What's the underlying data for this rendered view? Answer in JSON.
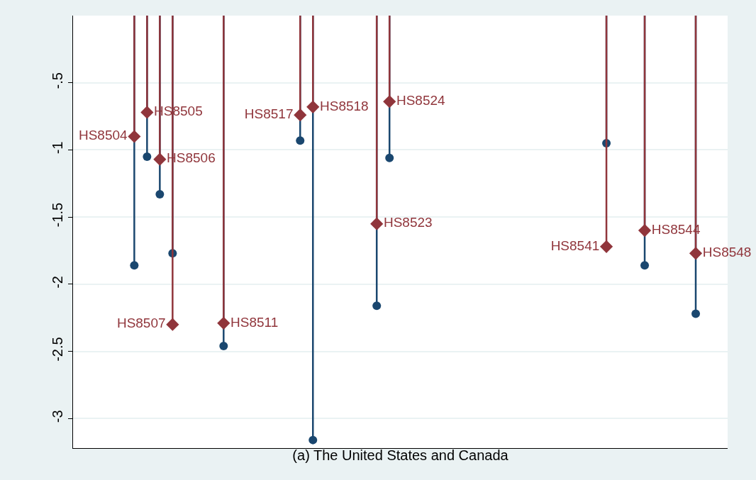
{
  "chart_data": {
    "type": "lollipop",
    "xlabel": "(a) The United States and Canada",
    "categories": [
      null,
      null,
      null,
      null,
      null,
      null,
      null,
      null,
      null,
      null,
      null,
      null,
      null,
      null,
      null,
      null,
      null,
      null,
      null,
      null,
      null,
      null,
      null,
      null,
      null,
      null,
      null,
      null,
      null,
      null,
      null,
      null,
      null,
      null,
      null,
      null,
      null,
      null,
      null,
      null,
      null,
      null,
      null,
      null,
      null,
      null,
      null,
      null,
      null,
      null,
      null
    ],
    "series": [
      {
        "color": "#1a476f",
        "marker": "circle",
        "values": [
          null,
          null,
          null,
          null,
          -1.86,
          -1.05,
          -1.33,
          -1.77,
          null,
          null,
          null,
          -2.46,
          null,
          null,
          null,
          null,
          null,
          -0.93,
          -3.16,
          null,
          null,
          null,
          null,
          -2.16,
          -1.06,
          null,
          null,
          null,
          null,
          null,
          null,
          null,
          null,
          null,
          null,
          null,
          null,
          null,
          null,
          null,
          null,
          -0.95,
          null,
          null,
          -1.86,
          null,
          null,
          null,
          -2.22,
          null,
          null
        ]
      },
      {
        "color": "#90353b",
        "marker": "diamond",
        "values": [
          null,
          null,
          null,
          null,
          -0.9,
          -0.72,
          -1.07,
          -2.3,
          null,
          null,
          null,
          -2.29,
          null,
          null,
          null,
          null,
          null,
          -0.74,
          -0.68,
          null,
          null,
          null,
          null,
          -1.55,
          -0.64,
          null,
          null,
          null,
          null,
          null,
          null,
          null,
          null,
          null,
          null,
          null,
          null,
          null,
          null,
          null,
          null,
          -1.72,
          null,
          null,
          -1.6,
          null,
          null,
          null,
          -1.77,
          null,
          null
        ],
        "value_labels": [
          null,
          null,
          null,
          null,
          "HS8504",
          "HS8505",
          "HS8506",
          "HS8507",
          null,
          null,
          null,
          "HS8511",
          null,
          null,
          null,
          null,
          null,
          "HS8517",
          "HS8518",
          null,
          null,
          null,
          null,
          "HS8523",
          "HS8524",
          null,
          null,
          null,
          null,
          null,
          null,
          null,
          null,
          null,
          null,
          null,
          null,
          null,
          null,
          null,
          null,
          "HS8541",
          null,
          null,
          "HS8544",
          null,
          null,
          null,
          "HS8548",
          null,
          null
        ]
      }
    ],
    "ylim": [
      -3.22,
      0
    ],
    "yticks": [
      -3,
      -2.5,
      -2,
      -1.5,
      -1,
      {
        "value": -0.5,
        "label": "-.5"
      }
    ],
    "grid": "y",
    "tick_labels": "y"
  }
}
